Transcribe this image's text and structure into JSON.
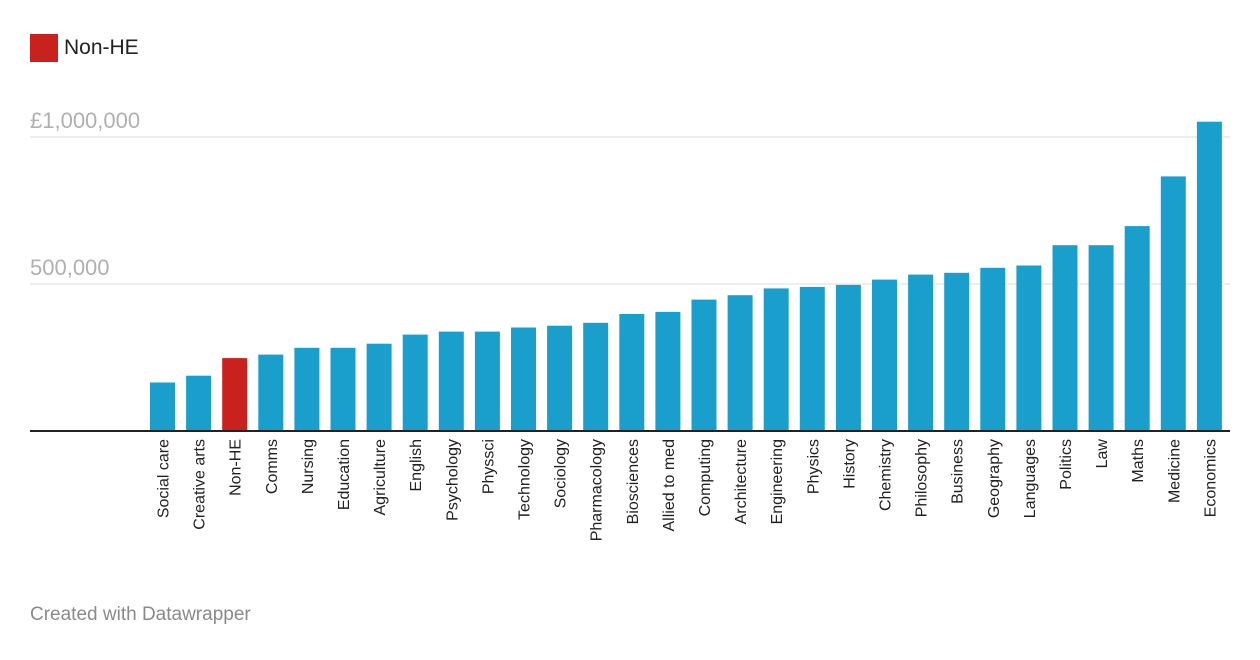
{
  "legend": {
    "label": "Non-HE",
    "color": "#c9211e"
  },
  "footer": {
    "credit": "Created with Datawrapper"
  },
  "colors": {
    "bar": "#1a9fcd",
    "highlight": "#c9211e",
    "grid": "#dddddd",
    "baseline": "#222222"
  },
  "chart_data": {
    "type": "bar",
    "categories": [
      "Social care",
      "Creative arts",
      "Non-HE",
      "Comms",
      "Nursing",
      "Education",
      "Agriculture",
      "English",
      "Psychology",
      "Physsci",
      "Technology",
      "Sociology",
      "Pharmacology",
      "Biosciences",
      "Allied to med",
      "Computing",
      "Architecture",
      "Engineering",
      "Physics",
      "History",
      "Chemistry",
      "Philosophy",
      "Business",
      "Geography",
      "Languages",
      "Politics",
      "Law",
      "Maths",
      "Medicine",
      "Economics"
    ],
    "values": [
      165000,
      188000,
      248000,
      260000,
      283000,
      283000,
      297000,
      328000,
      338000,
      338000,
      352000,
      358000,
      368000,
      398000,
      405000,
      447000,
      462000,
      485000,
      490000,
      497000,
      515000,
      532000,
      538000,
      555000,
      563000,
      632000,
      632000,
      697000,
      866000,
      1052000
    ],
    "highlight": [
      "Non-HE"
    ],
    "yticks": [
      {
        "value": 500000,
        "label": "500,000"
      },
      {
        "value": 1000000,
        "label": "£1,000,000"
      }
    ],
    "ylim": [
      0,
      1060000
    ],
    "grid": true,
    "legend_position": "top-left"
  }
}
